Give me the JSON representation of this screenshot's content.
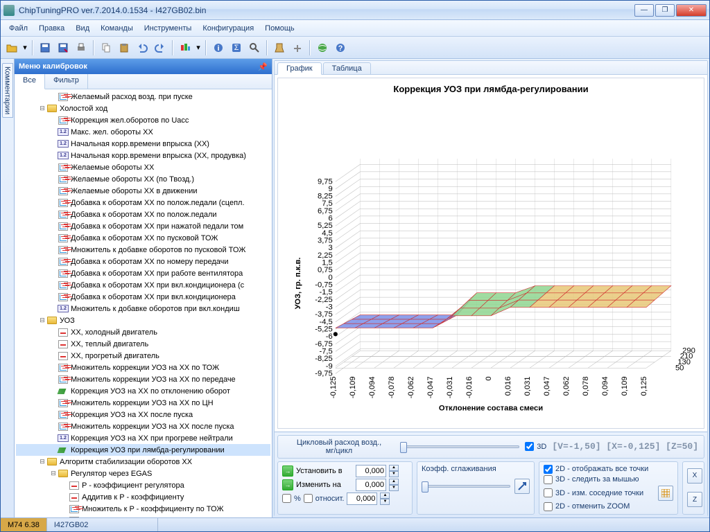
{
  "window": {
    "title": "ChipTuningPRO ver.7.2014.0.1534 - I427GB02.bin"
  },
  "menubar": [
    "Файл",
    "Правка",
    "Вид",
    "Команды",
    "Инструменты",
    "Конфигурация",
    "Помощь"
  ],
  "sidetab": "Комментарии",
  "leftpanel": {
    "title": "Меню калибровок",
    "tabs": [
      "Все",
      "Фильтр"
    ],
    "activeTab": 0
  },
  "tree": [
    {
      "indent": 3,
      "icon": "2d",
      "label": "Желаемый расход возд. при пуске"
    },
    {
      "indent": 2,
      "icon": "folder",
      "toggle": "-",
      "label": "Холостой ход"
    },
    {
      "indent": 3,
      "icon": "2d",
      "label": "Коррекция жел.оборотов по Uacc"
    },
    {
      "indent": 3,
      "icon": "12",
      "label": "Макс. жел. обороты ХХ"
    },
    {
      "indent": 3,
      "icon": "12",
      "label": "Начальная корр.времени впрыска (ХХ)"
    },
    {
      "indent": 3,
      "icon": "12",
      "label": "Начальная корр.времени впрыска (ХХ, продувка)"
    },
    {
      "indent": 3,
      "icon": "2d",
      "label": "Желаемые обороты ХХ"
    },
    {
      "indent": 3,
      "icon": "2d",
      "label": "Желаемые обороты ХХ (по Твозд.)"
    },
    {
      "indent": 3,
      "icon": "2d",
      "label": "Желаемые обороты ХХ в движении"
    },
    {
      "indent": 3,
      "icon": "2d",
      "label": "Добавка к оборотам ХХ по полож.педали (сцепл."
    },
    {
      "indent": 3,
      "icon": "2d",
      "label": "Добавка к оборотам ХХ по полож.педали"
    },
    {
      "indent": 3,
      "icon": "2d",
      "label": "Добавка к оборотам ХХ при нажатой педали том"
    },
    {
      "indent": 3,
      "icon": "2d",
      "label": "Добавка к оборотам ХХ по пусковой ТОЖ"
    },
    {
      "indent": 3,
      "icon": "2d",
      "label": "Множитель к добавке оборотов по пусковой ТОЖ"
    },
    {
      "indent": 3,
      "icon": "2d",
      "label": "Добавка к оборотам ХХ по номеру передачи"
    },
    {
      "indent": 3,
      "icon": "2d",
      "label": "Добавка к оборотам ХХ при работе вентилятора"
    },
    {
      "indent": 3,
      "icon": "2d",
      "label": "Добавка к оборотам ХХ при вкл.кондиционера (с"
    },
    {
      "indent": 3,
      "icon": "2d",
      "label": "Добавка к оборотам ХХ при вкл.кондиционера"
    },
    {
      "indent": 3,
      "icon": "12",
      "label": "Множитель к добавке оборотов при вкл.кондиш"
    },
    {
      "indent": 2,
      "icon": "folder",
      "toggle": "-",
      "label": "УОЗ"
    },
    {
      "indent": 3,
      "icon": "1d",
      "label": "ХХ, холодный двигатель"
    },
    {
      "indent": 3,
      "icon": "1d",
      "label": "ХХ, теплый двигатель"
    },
    {
      "indent": 3,
      "icon": "1d",
      "label": "ХХ, прогретый двигатель"
    },
    {
      "indent": 3,
      "icon": "2d",
      "label": "Множитель коррекции УОЗ на ХХ по ТОЖ"
    },
    {
      "indent": 3,
      "icon": "2d",
      "label": "Множитель коррекции УОЗ на ХХ по передаче"
    },
    {
      "indent": 3,
      "icon": "3d",
      "label": "Коррекция УОЗ на ХХ по отклонению оборот"
    },
    {
      "indent": 3,
      "icon": "2d",
      "label": "Множитель коррекции УОЗ на ХХ по ЦН"
    },
    {
      "indent": 3,
      "icon": "2d",
      "label": "Коррекция УОЗ на ХХ после пуска"
    },
    {
      "indent": 3,
      "icon": "2d",
      "label": "Множитель коррекции УОЗ на ХХ после пуска"
    },
    {
      "indent": 3,
      "icon": "12",
      "label": "Коррекция УОЗ на ХХ при прогреве нейтрали"
    },
    {
      "indent": 3,
      "icon": "3d",
      "label": "Коррекция УОЗ при лямбда-регулировании",
      "selected": true
    },
    {
      "indent": 2,
      "icon": "folder",
      "toggle": "-",
      "label": "Алгоритм стабилизации оборотов ХХ"
    },
    {
      "indent": 3,
      "icon": "folder",
      "toggle": "-",
      "label": "Регулятор через EGAS"
    },
    {
      "indent": 4,
      "icon": "1d",
      "label": "P - коэффициент регулятора"
    },
    {
      "indent": 4,
      "icon": "1d",
      "label": "Аддитив к  P - коэффициенту"
    },
    {
      "indent": 4,
      "icon": "2d",
      "label": "Множитель к  P - коэффициенту по ТОЖ"
    },
    {
      "indent": 4,
      "icon": "2d",
      "label": "Множитель к  P - коэффициенту после п"
    }
  ],
  "rightpanel": {
    "tabs": [
      "График",
      "Таблица"
    ],
    "activeTab": 0
  },
  "chart": {
    "title": "Коррекция УОЗ при лямбда-регулировании",
    "zlabel": "УОЗ, гр. п.к.в.",
    "xlabel": "Отклонение состава смеси",
    "ylabel": "Цикловый",
    "zticks": [
      "9,75",
      "9",
      "8,25",
      "7,5",
      "6,75",
      "6",
      "5,25",
      "4,5",
      "3,75",
      "3",
      "2,25",
      "1,5",
      "0,75",
      "0",
      "-0,75",
      "-1,5",
      "-2,25",
      "-3",
      "-3,75",
      "-4,5",
      "-5,25",
      "-6",
      "-6,75",
      "-7,5",
      "-8,25",
      "-9",
      "-9,75"
    ],
    "xticks": [
      "-0,125",
      "-0,109",
      "-0,094",
      "-0,078",
      "-0,062",
      "-0,047",
      "-0,031",
      "-0,016",
      "0",
      "0,016",
      "0,031",
      "0,047",
      "0,062",
      "0,078",
      "0,094",
      "0,109",
      "0,125"
    ],
    "yticks": [
      "290",
      "210",
      "130",
      "50"
    ],
    "colors": {
      "grid": "#b8b8b8",
      "axisText": "#000",
      "surf1": "#7a8fe8",
      "surf2": "#8fd690",
      "surf3": "#e8c878",
      "edge": "#d03030"
    }
  },
  "bottom": {
    "axisLabel": "Цикловый расход возд.,\nмг/цикл",
    "chk3d": "3D",
    "status": "[V=-1,50] [X=-0,125] [Z=50]",
    "set": "Установить в",
    "setVal": "0,000",
    "chg": "Изменить на",
    "chgVal": "0,000",
    "pct": "%",
    "rel": "относит.",
    "relVal": "0,000",
    "smooth": "Коэфф. сглаживания",
    "opts": [
      "2D - отображать все точки",
      "3D - следить за мышью",
      "3D - изм. соседние точки",
      "2D - отменить ZOOM"
    ],
    "optsChecked": [
      true,
      false,
      false,
      false
    ],
    "btnX": "X",
    "btnZ": "Z"
  },
  "statusbar": {
    "left": "М74 6.38",
    "mid": "I427GB02"
  }
}
